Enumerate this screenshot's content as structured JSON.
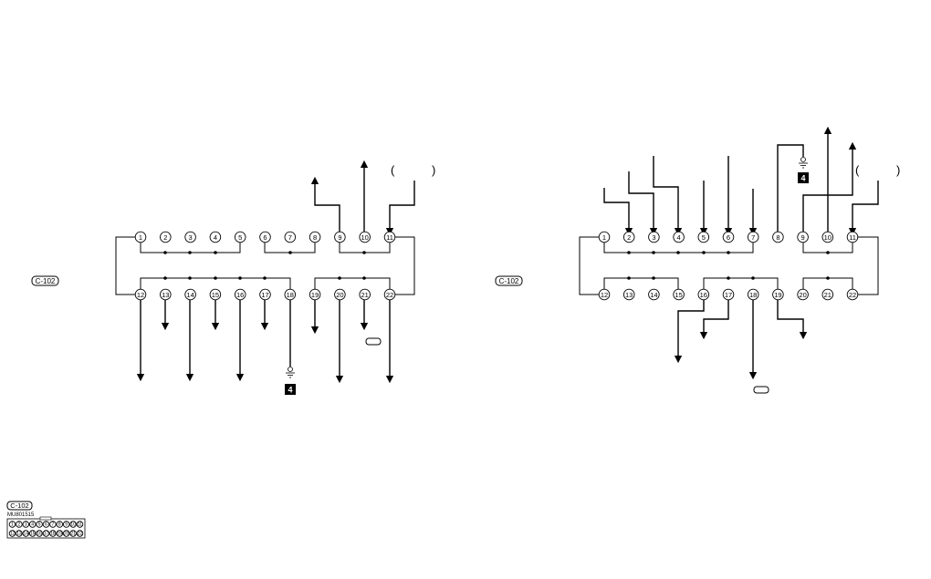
{
  "diagrams": [
    {
      "id": "left",
      "connector_label": "C-102",
      "top_pins": [
        "1",
        "2",
        "3",
        "4",
        "5",
        "6",
        "7",
        "8",
        "9",
        "10",
        "11"
      ],
      "bottom_pins": [
        "12",
        "13",
        "14",
        "15",
        "16",
        "17",
        "18",
        "19",
        "20",
        "21",
        "22"
      ],
      "ground_label": "4",
      "paren_open": "(",
      "paren_close": ")"
    },
    {
      "id": "right",
      "connector_label": "C-102",
      "top_pins": [
        "1",
        "2",
        "3",
        "4",
        "5",
        "6",
        "7",
        "8",
        "9",
        "10",
        "11"
      ],
      "bottom_pins": [
        "12",
        "13",
        "14",
        "15",
        "16",
        "17",
        "18",
        "19",
        "20",
        "21",
        "22"
      ],
      "ground_label": "4",
      "paren_open": "(",
      "paren_close": ")"
    }
  ],
  "legend": {
    "connector_label": "C-102",
    "part_number": "MU801515",
    "top_pins": [
      "1",
      "2",
      "3",
      "4",
      "5",
      "6",
      "7",
      "8",
      "9",
      "10",
      "11"
    ],
    "bottom_pins": [
      "12",
      "13",
      "14",
      "15",
      "16",
      "17",
      "18",
      "19",
      "20",
      "21",
      "22"
    ]
  },
  "colors": {
    "line": "#000000",
    "background": "#ffffff"
  }
}
